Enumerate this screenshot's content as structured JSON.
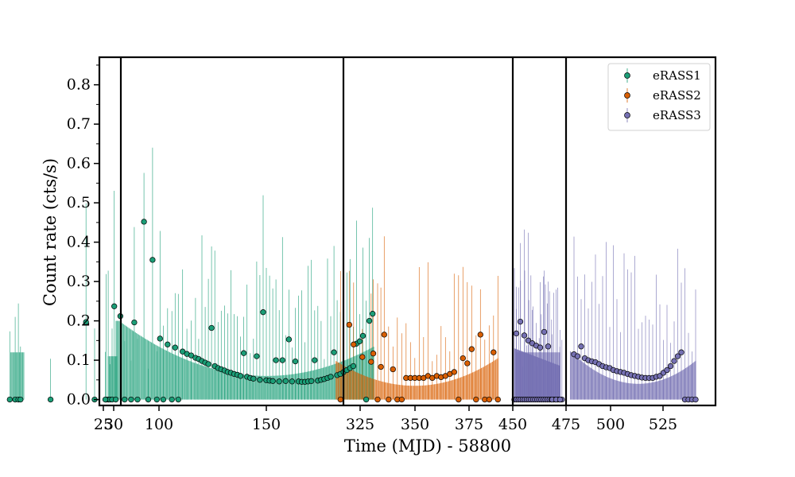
{
  "chart_data": {
    "type": "scatter",
    "title": "",
    "xlabel": "Time (MJD) - 58800",
    "ylabel": "Count rate (cts/s)",
    "ylim": [
      -0.015,
      0.87
    ],
    "yticks": [
      0.0,
      0.1,
      0.2,
      0.3,
      0.4,
      0.5,
      0.6,
      0.7,
      0.8
    ],
    "ytick_labels": [
      "0.0",
      "0.1",
      "0.2",
      "0.3",
      "0.4",
      "0.5",
      "0.6",
      "0.7",
      "0.8"
    ],
    "legend_position": "top-right",
    "grid": false,
    "broken_x_axis": true,
    "segments": [
      {
        "xlim": [
          23,
          30
        ],
        "ticks": [
          25,
          30
        ],
        "tick_labels": [
          "25",
          "30"
        ]
      },
      {
        "xlim": [
          30,
          202
        ],
        "ticks": [
          100,
          150
        ],
        "tick_labels": [
          "100",
          "150"
        ]
      },
      {
        "xlim": [
          312,
          390
        ],
        "ticks": [
          325,
          350,
          375
        ],
        "tick_labels": [
          "325",
          "350",
          "375"
        ]
      },
      {
        "xlim": [
          400,
          450
        ],
        "ticks": [
          450
        ],
        "tick_labels": [
          "450"
        ]
      },
      {
        "xlim": [
          450,
          475
        ],
        "ticks": [
          475
        ],
        "tick_labels": [
          "475"
        ]
      },
      {
        "xlim": [
          475,
          549
        ],
        "ticks": [
          500,
          525
        ],
        "tick_labels": [
          "500",
          "525"
        ]
      }
    ],
    "series": [
      {
        "name": "eRASS1",
        "color": "#1b9e77",
        "x": [
          25.0,
          26.0,
          26.8,
          27.8,
          28.8,
          29.5,
          30.5,
          33.0,
          34.5,
          35.5,
          49.5,
          66.0,
          70.0,
          75.0,
          82.0,
          84.0,
          87.0,
          88.5,
          90.0,
          93.0,
          95.0,
          97.0,
          99.0,
          100.5,
          102.0,
          104.0,
          106.0,
          107.5,
          109.0,
          111.0,
          113.0,
          115.0,
          117.0,
          118.5,
          120.0,
          121.5,
          123.0,
          124.5,
          126.0,
          127.5,
          129.0,
          130.5,
          132.0,
          133.5,
          135.0,
          136.5,
          138.0,
          139.5,
          141.0,
          142.5,
          144.0,
          145.5,
          147.0,
          148.5,
          150.0,
          151.5,
          153.0,
          154.5,
          156.0,
          157.5,
          159.0,
          160.5,
          162.0,
          163.5,
          165.0,
          166.5,
          168.0,
          169.5,
          171.0,
          172.5,
          174.0,
          175.5,
          177.0,
          178.5,
          180.0,
          181.5,
          183.0,
          184.5,
          186.0,
          187.5,
          189.0,
          190.5,
          192.0,
          193.5,
          195.0,
          196.5,
          198.0,
          199.5
        ],
        "y": [
          0.0,
          0.0,
          0.0,
          0.0,
          0.237,
          0.0,
          0.0,
          0.0,
          0.0,
          0.0,
          0.0,
          0.197,
          0.0,
          0.0,
          0.212,
          0.0,
          0.0,
          0.196,
          0.0,
          0.452,
          0.0,
          0.355,
          0.0,
          0.155,
          0.0,
          0.14,
          0.0,
          0.132,
          0.0,
          0.122,
          0.116,
          0.112,
          0.106,
          0.103,
          0.098,
          0.094,
          0.09,
          0.182,
          0.085,
          0.08,
          0.077,
          0.074,
          0.07,
          0.068,
          0.065,
          0.063,
          0.06,
          0.118,
          0.058,
          0.055,
          0.053,
          0.11,
          0.05,
          0.222,
          0.049,
          0.048,
          0.047,
          0.1,
          0.046,
          0.1,
          0.047,
          0.153,
          0.046,
          0.097,
          0.046,
          0.045,
          0.045,
          0.046,
          0.047,
          0.1,
          0.048,
          0.05,
          0.052,
          0.055,
          0.058,
          0.12,
          0.062,
          0.065,
          0.07,
          0.075,
          0.08,
          0.085,
          0.142,
          0.148,
          0.162,
          0.0,
          0.2,
          0.218
        ]
      },
      {
        "name": "eRASS2",
        "color": "#d95f02",
        "x": [
          316.0,
          320.0,
          322.0,
          326.0,
          330.0,
          331.0,
          333.0,
          334.5,
          336.0,
          338.0,
          340.0,
          342.0,
          344.0,
          346.0,
          348.0,
          350.0,
          352.0,
          354.0,
          356.0,
          358.0,
          360.0,
          362.0,
          364.0,
          366.0,
          368.0,
          370.0,
          372.0,
          374.0,
          376.0,
          378.0,
          380.0,
          382.0,
          384.0,
          386.0,
          388.0
        ],
        "y": [
          0.0,
          0.19,
          0.14,
          0.108,
          0.096,
          0.117,
          0.0,
          0.083,
          0.165,
          0.0,
          0.077,
          0.0,
          0.0,
          0.055,
          0.055,
          0.055,
          0.055,
          0.055,
          0.06,
          0.055,
          0.06,
          0.057,
          0.06,
          0.065,
          0.07,
          0.0,
          0.105,
          0.092,
          0.128,
          0.0,
          0.165,
          0.0,
          0.0,
          0.12,
          0.0
        ]
      },
      {
        "name": "eRASS3",
        "color": "#7570b3",
        "x": [
          403.0,
          405.0,
          407.0,
          409.0,
          411.0,
          413.0,
          415.0,
          417.0,
          419.0,
          421.0,
          423.0,
          425.0,
          427.0,
          429.0,
          431.0,
          433.0,
          435.0,
          437.0,
          439.0,
          441.0,
          443.0,
          445.0,
          447.0,
          449.0,
          451.0,
          453.0,
          455.0,
          457.0,
          459.0,
          461.0,
          463.0,
          465.0,
          467.0,
          469.0,
          471.0,
          473.0,
          479.0,
          481.0,
          483.0,
          485.0,
          487.0,
          489.0,
          491.0,
          493.0,
          495.0,
          497.0,
          499.0,
          501.0,
          503.0,
          505.0,
          507.0,
          509.0,
          511.0,
          513.0,
          515.0,
          517.0,
          519.0,
          521.0,
          523.0,
          525.0,
          527.0,
          529.0,
          531.0,
          533.0,
          535.0,
          537.0,
          539.0,
          541.0,
          543.0,
          545.0,
          547.0
        ],
        "y": [
          0.0,
          0.0,
          0.0,
          0.0,
          0.0,
          0.0,
          0.0,
          0.0,
          0.0,
          0.0,
          0.0,
          0.0,
          0.0,
          0.0,
          0.0,
          0.0,
          0.0,
          0.0,
          0.0,
          0.0,
          0.0,
          0.0,
          0.0,
          0.0,
          0.168,
          0.198,
          0.163,
          0.15,
          0.143,
          0.137,
          0.132,
          0.172,
          0.135,
          0.0,
          0.0,
          0.0,
          0.115,
          0.11,
          0.135,
          0.105,
          0.1,
          0.097,
          0.095,
          0.09,
          0.085,
          0.082,
          0.08,
          0.075,
          0.072,
          0.07,
          0.068,
          0.065,
          0.062,
          0.06,
          0.058,
          0.056,
          0.055,
          0.055,
          0.055,
          0.058,
          0.06,
          0.068,
          0.075,
          0.085,
          0.098,
          0.11,
          0.12,
          0.0,
          0.0,
          0.0,
          0.0
        ]
      }
    ]
  }
}
